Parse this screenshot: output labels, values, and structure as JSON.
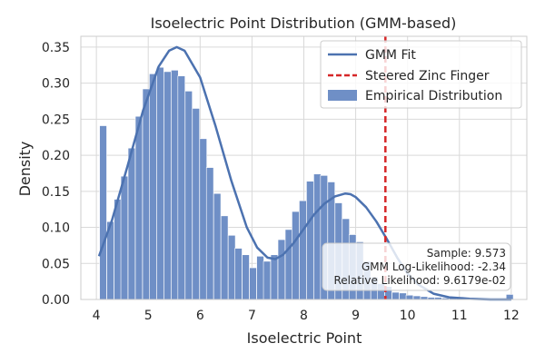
{
  "chart_data": {
    "type": "bar",
    "title": "Isoelectric Point Distribution (GMM-based)",
    "xlabel": "Isoelectric Point",
    "ylabel": "Density",
    "xlim": [
      3.7,
      12.3
    ],
    "ylim": [
      0,
      0.365
    ],
    "xticks": [
      "4",
      "5",
      "6",
      "7",
      "8",
      "9",
      "10",
      "11",
      "12"
    ],
    "yticks": [
      "0.00",
      "0.05",
      "0.10",
      "0.15",
      "0.20",
      "0.25",
      "0.30",
      "0.35"
    ],
    "grid": true,
    "legend_position": "top-right",
    "bin_width": 0.1375,
    "series": [
      {
        "name": "Empirical Distribution",
        "kind": "histogram",
        "color": "#6f8fc6",
        "x": [
          4.13,
          4.27,
          4.41,
          4.54,
          4.68,
          4.82,
          4.96,
          5.09,
          5.23,
          5.37,
          5.51,
          5.64,
          5.78,
          5.92,
          6.06,
          6.19,
          6.33,
          6.47,
          6.61,
          6.74,
          6.88,
          7.02,
          7.16,
          7.29,
          7.43,
          7.57,
          7.71,
          7.84,
          7.98,
          8.12,
          8.26,
          8.39,
          8.53,
          8.67,
          8.81,
          8.94,
          9.08,
          9.22,
          9.36,
          9.49,
          9.63,
          9.77,
          9.91,
          10.04,
          10.18,
          10.32,
          10.46,
          10.59,
          10.73,
          10.87,
          11.01,
          11.14,
          11.28,
          11.42,
          11.56,
          11.69,
          11.83,
          11.97
        ],
        "values": [
          0.241,
          0.108,
          0.139,
          0.171,
          0.21,
          0.254,
          0.292,
          0.313,
          0.322,
          0.316,
          0.318,
          0.31,
          0.289,
          0.265,
          0.223,
          0.183,
          0.147,
          0.116,
          0.089,
          0.071,
          0.062,
          0.044,
          0.06,
          0.053,
          0.062,
          0.083,
          0.097,
          0.122,
          0.137,
          0.164,
          0.174,
          0.172,
          0.163,
          0.134,
          0.112,
          0.09,
          0.08,
          0.053,
          0.031,
          0.022,
          0.018,
          0.01,
          0.009,
          0.006,
          0.005,
          0.004,
          0.003,
          0.003,
          0.002,
          0.002,
          0.002,
          0.001,
          0.002,
          0.001,
          0.001,
          0.001,
          0.001,
          0.007
        ]
      },
      {
        "name": "GMM Fit",
        "kind": "line",
        "color": "#4c72b0",
        "x": [
          4.05,
          4.3,
          4.6,
          4.9,
          5.2,
          5.4,
          5.55,
          5.7,
          6.0,
          6.3,
          6.6,
          6.9,
          7.1,
          7.3,
          7.45,
          7.6,
          7.8,
          8.0,
          8.2,
          8.4,
          8.6,
          8.8,
          8.9,
          9.0,
          9.2,
          9.4,
          9.6,
          9.8,
          10.0,
          10.2,
          10.5,
          10.8,
          11.2,
          11.6,
          12.0
        ],
        "values": [
          0.06,
          0.11,
          0.185,
          0.262,
          0.323,
          0.345,
          0.35,
          0.345,
          0.308,
          0.24,
          0.165,
          0.1,
          0.072,
          0.058,
          0.056,
          0.062,
          0.078,
          0.098,
          0.118,
          0.133,
          0.143,
          0.147,
          0.146,
          0.142,
          0.128,
          0.108,
          0.084,
          0.058,
          0.036,
          0.021,
          0.008,
          0.003,
          0.001,
          0.0,
          0.0
        ]
      },
      {
        "name": "Steered Zinc Finger",
        "kind": "vline",
        "color": "#d62728",
        "x": 9.573
      }
    ],
    "annotation": [
      "Sample: 9.573",
      "GMM Log-Likelihood: -2.34",
      "Relative Likelihood: 9.6179e-02"
    ]
  }
}
